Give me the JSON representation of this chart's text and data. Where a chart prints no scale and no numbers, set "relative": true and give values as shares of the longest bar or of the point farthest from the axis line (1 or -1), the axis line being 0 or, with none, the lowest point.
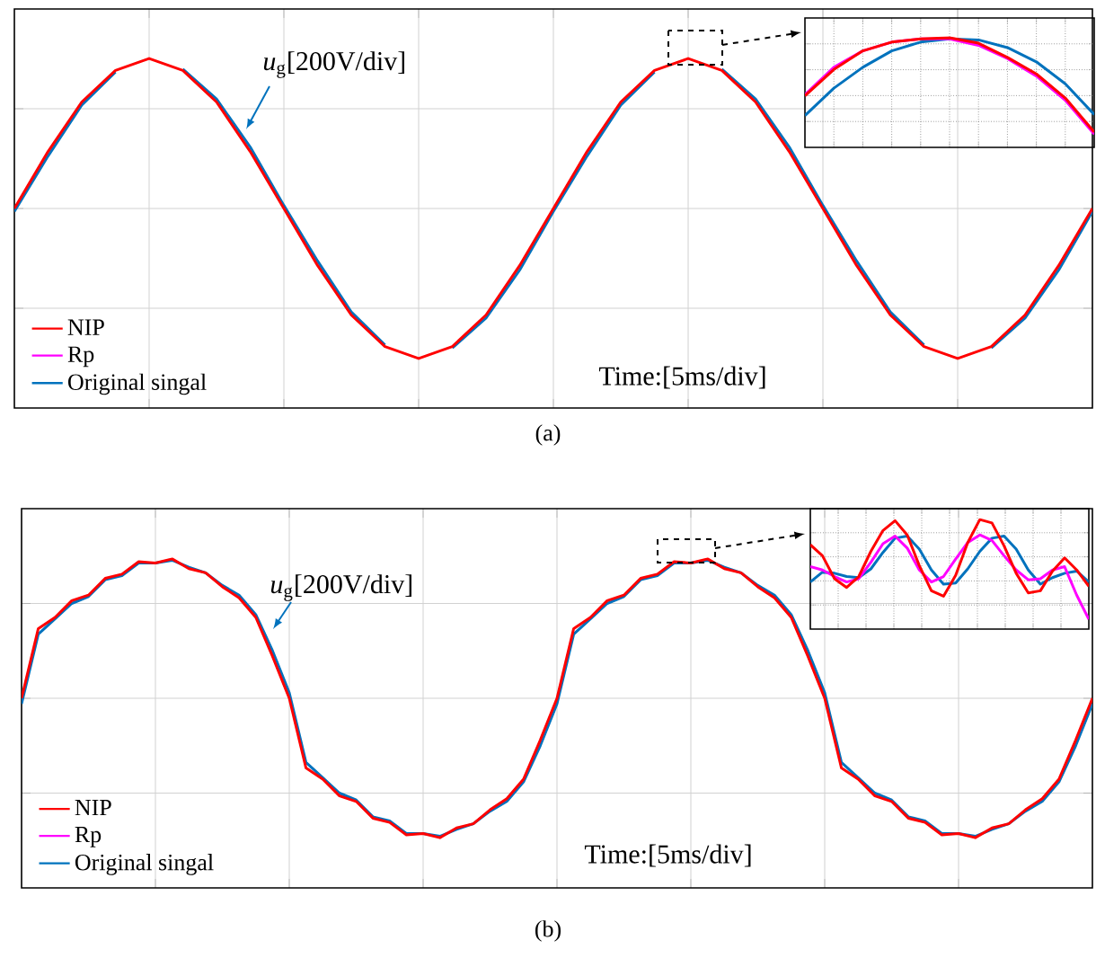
{
  "chart_data": [
    {
      "type": "line",
      "title": "(a)",
      "relative": true,
      "grid": true,
      "legend": "bottom left",
      "tick_labels": false,
      "annotations": [
        "*u*$_{g}$[200V/div]",
        "Time:[5ms/div]"
      ],
      "categories": [
        null,
        null,
        null,
        null,
        null,
        null,
        null,
        null,
        null,
        null,
        null,
        null,
        null,
        null,
        null,
        null,
        null,
        null,
        null,
        null,
        null,
        null,
        null,
        null,
        null,
        null,
        null,
        null,
        null,
        null,
        null,
        null,
        null
      ],
      "series": [
        {
          "name": "NIP",
          "color": "#ff0000",
          "values": [
            0,
            0.38,
            0.71,
            0.92,
            1,
            0.92,
            0.71,
            0.38,
            0,
            -0.38,
            -0.71,
            -0.92,
            -1,
            -0.92,
            -0.71,
            -0.38,
            0,
            0.38,
            0.71,
            0.92,
            1,
            0.92,
            0.71,
            0.38,
            0,
            -0.38,
            -0.71,
            -0.92,
            -1,
            -0.92,
            -0.71,
            -0.38,
            0
          ]
        },
        {
          "name": "Rp",
          "color": "#ff00ff",
          "values": [
            null,
            null,
            null,
            null,
            null,
            null,
            null,
            null,
            null,
            null,
            null,
            null,
            null,
            null,
            null,
            null,
            null,
            null,
            null,
            null,
            null,
            null,
            null,
            null,
            null,
            null,
            null,
            null,
            null,
            null,
            null,
            null,
            null
          ]
        },
        {
          "name": "Original singal",
          "color": "#0072bd",
          "values": [
            -0.02,
            0.35,
            0.69,
            0.91,
            null,
            0.93,
            0.73,
            0.41,
            0.02,
            -0.35,
            -0.69,
            -0.91,
            null,
            -0.93,
            -0.73,
            -0.41,
            -0.02,
            0.35,
            0.69,
            0.91,
            null,
            0.93,
            0.73,
            0.41,
            0.02,
            -0.35,
            -0.69,
            -0.91,
            null,
            -0.93,
            -0.73,
            -0.41,
            -0.02
          ]
        }
      ]
    },
    {
      "type": "line",
      "relative": true,
      "grid": true,
      "tick_labels": false,
      "categories": [
        null,
        null,
        null,
        null,
        null,
        null,
        null,
        null,
        null,
        null,
        null
      ],
      "series": [
        {
          "color": "#ff0000",
          "values": [
            0.47,
            0.71,
            0.88,
            0.96,
            0.99,
            1,
            0.95,
            0.82,
            0.67,
            0.45,
            0.14
          ]
        },
        {
          "color": "#ff00ff",
          "values": [
            0.48,
            0.73,
            0.88,
            0.96,
            0.99,
            0.99,
            0.93,
            0.81,
            0.65,
            0.43,
            0.12
          ]
        },
        {
          "color": "#0072bd",
          "values": [
            0.29,
            0.54,
            0.73,
            0.88,
            0.96,
            0.99,
            0.98,
            0.91,
            0.78,
            0.58,
            0.3
          ]
        }
      ]
    },
    {
      "type": "line",
      "title": "(b)",
      "relative": true,
      "grid": true,
      "legend": "bottom left",
      "tick_labels": false,
      "annotations": [
        "*u*$_{g}$[200V/div]",
        "Time:[5ms/div]"
      ],
      "categories": [
        null,
        null,
        null,
        null,
        null,
        null,
        null,
        null,
        null,
        null,
        null,
        null,
        null,
        null,
        null,
        null,
        null,
        null,
        null,
        null,
        null,
        null,
        null,
        null,
        null,
        null,
        null,
        null,
        null,
        null,
        null,
        null,
        null,
        null,
        null,
        null,
        null,
        null,
        null,
        null,
        null,
        null,
        null,
        null,
        null,
        null,
        null,
        null,
        null,
        null,
        null,
        null,
        null,
        null,
        null,
        null,
        null,
        null,
        null,
        null,
        null,
        null,
        null,
        null,
        null
      ],
      "series": [
        {
          "name": "NIP",
          "color": "#ff0000",
          "values": [
            0,
            0.5,
            0.58,
            0.7,
            0.74,
            0.86,
            0.89,
            0.98,
            0.97,
            1,
            0.93,
            0.9,
            0.8,
            0.72,
            0.58,
            0.3,
            0,
            -0.5,
            -0.58,
            -0.7,
            -0.74,
            -0.86,
            -0.89,
            -0.98,
            -0.97,
            -1,
            -0.93,
            -0.9,
            -0.8,
            -0.72,
            -0.58,
            -0.3,
            0,
            0.5,
            0.58,
            0.7,
            0.74,
            0.86,
            0.89,
            0.98,
            0.97,
            1,
            0.93,
            0.9,
            0.8,
            0.72,
            0.58,
            0.3,
            0,
            -0.5,
            -0.58,
            -0.7,
            -0.74,
            -0.86,
            -0.89,
            -0.98,
            -0.97,
            -1,
            -0.93,
            -0.9,
            -0.8,
            -0.72,
            -0.58,
            -0.3,
            0
          ]
        },
        {
          "name": "Rp",
          "color": "#ff00ff",
          "values": [
            null,
            null,
            null,
            null,
            null,
            null,
            null,
            null,
            null,
            null,
            null,
            null,
            null,
            null,
            null,
            null,
            null,
            null,
            null,
            null,
            null,
            null,
            null,
            null,
            null,
            null,
            null,
            null,
            null,
            null,
            null,
            null,
            null,
            null,
            null,
            null,
            null,
            null,
            null,
            null,
            null,
            null,
            null,
            null,
            null,
            null,
            null,
            null,
            null,
            null,
            null,
            null,
            null,
            null,
            null,
            null,
            null,
            null,
            null,
            null,
            null,
            null,
            null,
            null,
            null
          ]
        },
        {
          "name": "Original singal",
          "color": "#0072bd",
          "values": [
            -0.04,
            0.46,
            0.57,
            0.68,
            0.73,
            0.85,
            0.88,
            0.97,
            0.97,
            0.99,
            0.94,
            0.9,
            0.81,
            0.74,
            0.6,
            0.34,
            0.04,
            -0.46,
            -0.57,
            -0.68,
            -0.73,
            -0.85,
            -0.88,
            -0.97,
            -0.97,
            -0.99,
            -0.94,
            -0.9,
            -0.81,
            -0.74,
            -0.6,
            -0.34,
            -0.04,
            0.46,
            0.57,
            0.68,
            0.73,
            0.85,
            0.88,
            0.97,
            0.97,
            0.99,
            0.94,
            0.9,
            0.81,
            0.74,
            0.6,
            0.34,
            0.04,
            -0.46,
            -0.57,
            -0.68,
            -0.73,
            -0.85,
            -0.88,
            -0.97,
            -0.97,
            -0.99,
            -0.94,
            -0.9,
            -0.81,
            -0.74,
            -0.6,
            -0.34,
            -0.04
          ]
        }
      ]
    },
    {
      "type": "line",
      "relative": true,
      "grid": true,
      "tick_labels": false,
      "categories": [
        null,
        null,
        null,
        null,
        null,
        null,
        null,
        null,
        null,
        null,
        null,
        null,
        null,
        null,
        null,
        null,
        null,
        null,
        null,
        null,
        null,
        null,
        null,
        null
      ],
      "series": [
        {
          "color": "#ff0000",
          "values": [
            0.77,
            0.67,
            0.46,
            0.38,
            0.48,
            0.71,
            0.9,
            0.99,
            0.86,
            0.58,
            0.35,
            0.3,
            0.49,
            0.79,
            1,
            0.97,
            0.76,
            0.51,
            0.33,
            0.35,
            0.53,
            0.65,
            0.54,
            0.39
          ]
        },
        {
          "color": "#ff00ff",
          "values": [
            0.57,
            0.54,
            0.48,
            0.43,
            0.46,
            0.61,
            0.78,
            0.85,
            0.74,
            0.54,
            0.43,
            0.48,
            0.64,
            0.79,
            0.86,
            0.81,
            0.67,
            0.54,
            0.45,
            0.46,
            0.54,
            0.57,
            0.31,
            0.09
          ]
        },
        {
          "color": "#0072bd",
          "values": [
            0.43,
            0.52,
            0.51,
            0.48,
            0.47,
            0.55,
            0.7,
            0.83,
            0.85,
            0.73,
            0.54,
            0.41,
            0.42,
            0.55,
            0.71,
            0.83,
            0.85,
            0.73,
            0.54,
            0.41,
            0.47,
            0.51,
            0.53,
            0.43
          ]
        }
      ]
    }
  ]
}
